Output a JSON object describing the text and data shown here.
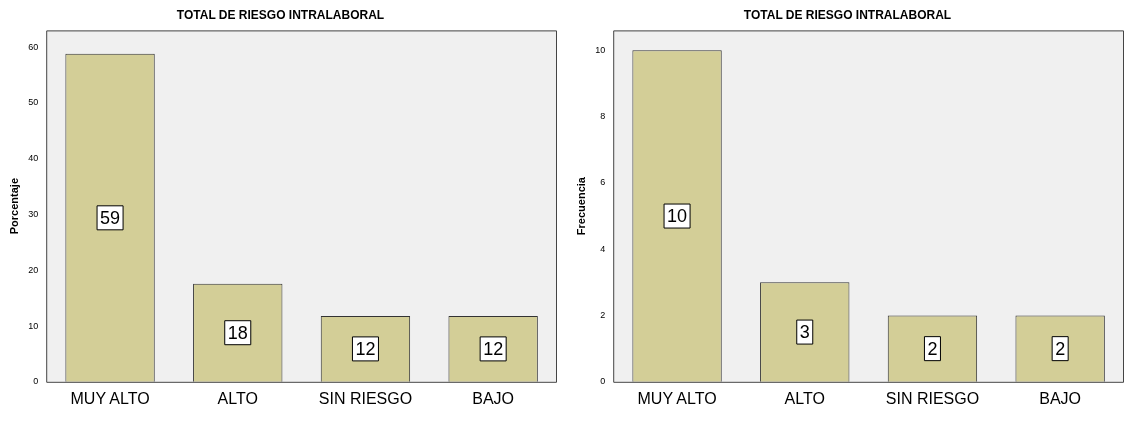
{
  "chart_data": [
    {
      "type": "bar",
      "title": "TOTAL DE RIESGO INTRALABORAL",
      "ylabel": "Porcentaje",
      "categories": [
        "MUY ALTO",
        "ALTO",
        "SIN RIESGO",
        "BAJO"
      ],
      "values": [
        58.8,
        17.6,
        11.8,
        11.8
      ],
      "value_labels": [
        "59",
        "18",
        "12",
        "12"
      ],
      "color": "#d3ce97",
      "ylim": [
        0,
        63
      ],
      "yticks": [
        0,
        10,
        20,
        30,
        40,
        50,
        60
      ],
      "grid": false
    },
    {
      "type": "bar",
      "title": "TOTAL DE RIESGO INTRALABORAL",
      "ylabel": "Frecuencia",
      "categories": [
        "MUY ALTO",
        "ALTO",
        "SIN RIESGO",
        "BAJO"
      ],
      "values": [
        10,
        3,
        2,
        2
      ],
      "data_labels": true,
      "color": "#d3ce97",
      "ylim": [
        0,
        10.6
      ],
      "yticks": [
        0,
        2,
        4,
        6,
        8,
        10
      ],
      "grid": false
    }
  ]
}
